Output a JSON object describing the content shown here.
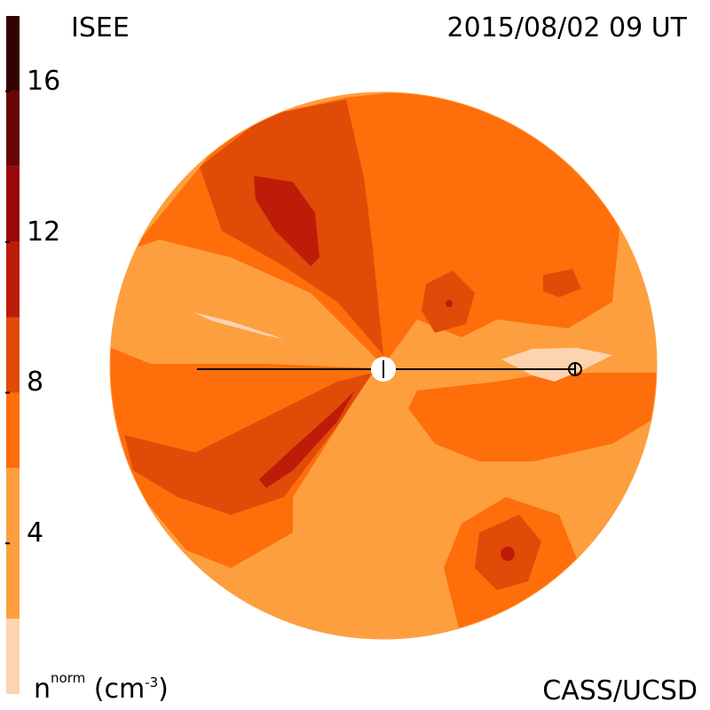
{
  "header": {
    "title_left": "ISEE",
    "title_right": "2015/08/02 09 UT"
  },
  "footer": {
    "credit": "CASS/UCSD",
    "colorbar_label_main": "n",
    "colorbar_label_sup": "norm",
    "colorbar_label_unit_pre": "(cm",
    "colorbar_label_unit_sup": "-3",
    "colorbar_label_unit_post": ")"
  },
  "chart_data": {
    "type": "heatmap",
    "title": "",
    "colorbar": {
      "range": [
        0,
        18
      ],
      "tick_labels": [
        "16",
        "12",
        "8",
        "4"
      ],
      "tick_values": [
        16,
        12,
        8,
        4
      ],
      "levels": [
        {
          "from": 0,
          "to": 2,
          "color": "#fdd3b0"
        },
        {
          "from": 2,
          "to": 6,
          "color": "#fd9f3f"
        },
        {
          "from": 6,
          "to": 8,
          "color": "#fe6e0a"
        },
        {
          "from": 8,
          "to": 10,
          "color": "#e04b08"
        },
        {
          "from": 10,
          "to": 12,
          "color": "#be1c08"
        },
        {
          "from": 12,
          "to": 14,
          "color": "#9a0708"
        },
        {
          "from": 14,
          "to": 16,
          "color": "#6b0606"
        },
        {
          "from": 16,
          "to": 18,
          "color": "#350202"
        }
      ]
    },
    "colors": {
      "light": "#fdd3b0",
      "base": "#fd9f3f",
      "mid": "#fe6e0a",
      "high": "#e04b08",
      "higher": "#be1c08",
      "top": "#9a0708"
    }
  }
}
